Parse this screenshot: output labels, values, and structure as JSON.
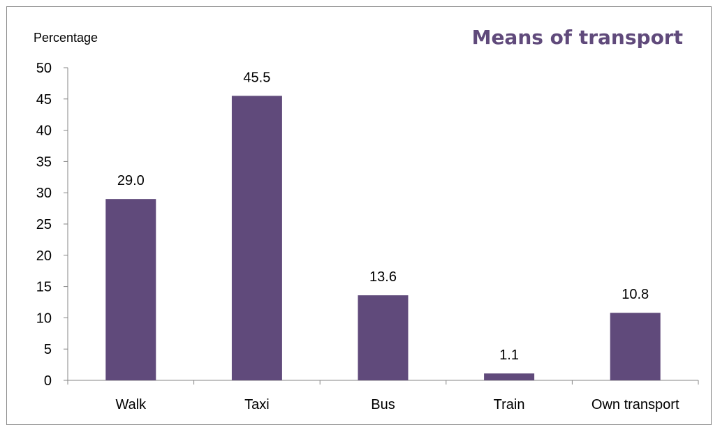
{
  "chart_data": {
    "type": "bar",
    "title": "Means of transport",
    "ylabel": "Percentage",
    "xlabel": "",
    "categories": [
      "Walk",
      "Taxi",
      "Bus",
      "Train",
      "Own transport"
    ],
    "values": [
      29.0,
      45.5,
      13.6,
      1.1,
      10.8
    ],
    "value_labels": [
      "29.0",
      "45.5",
      "13.6",
      "1.1",
      "10.8"
    ],
    "ylim": [
      0,
      50
    ],
    "yticks": [
      0,
      5,
      10,
      15,
      20,
      25,
      30,
      35,
      40,
      45,
      50
    ],
    "grid": false,
    "legend": "none",
    "bar_color": "#604a7b",
    "title_color": "#604a7b"
  }
}
